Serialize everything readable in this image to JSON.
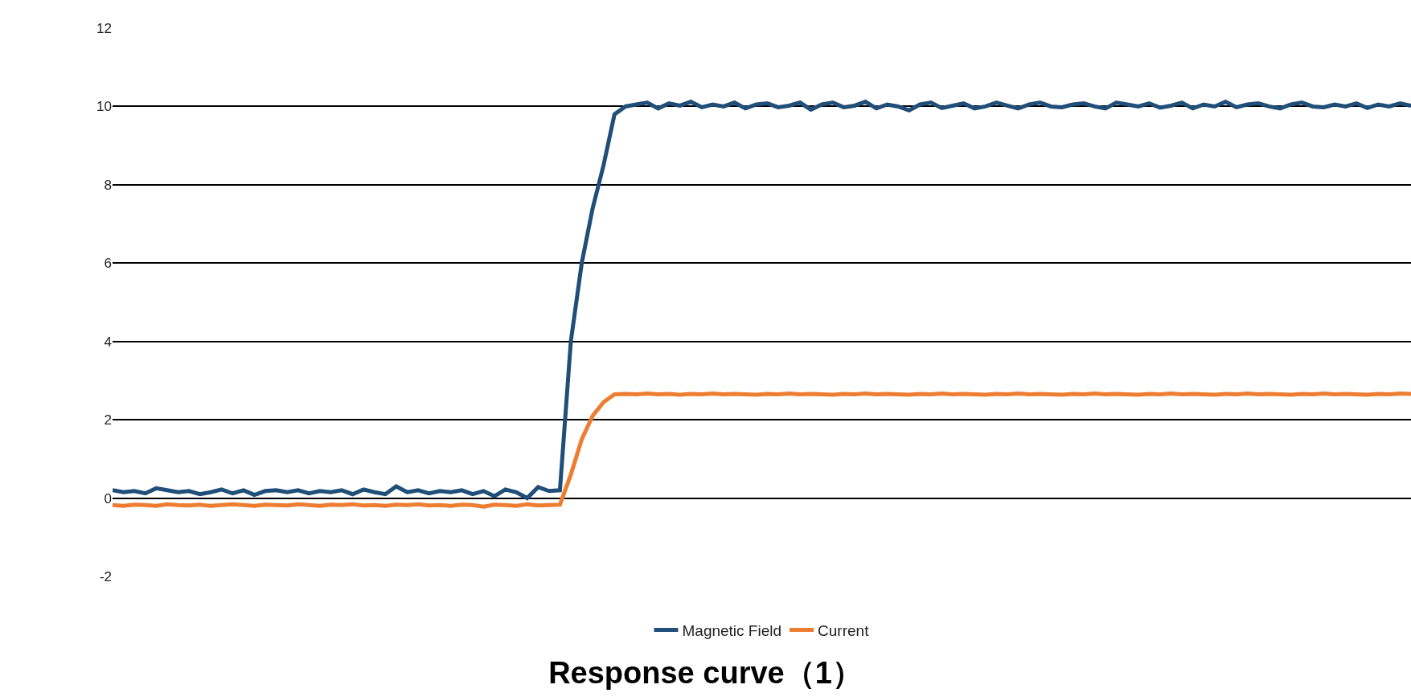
{
  "chart_data": {
    "type": "line",
    "title": "Response curve（1）",
    "categories": [
      null,
      null,
      null,
      null,
      null,
      null,
      null,
      null,
      null,
      null,
      null,
      null,
      null,
      null,
      null,
      null,
      null,
      null,
      null,
      null,
      null,
      null,
      null,
      null,
      null,
      null,
      null,
      null,
      null,
      null,
      null,
      null,
      null,
      null,
      null,
      null,
      null,
      null,
      null,
      null,
      null,
      null,
      null,
      null,
      null,
      null,
      null,
      null,
      null,
      null,
      null,
      null,
      null,
      null,
      null,
      null,
      null,
      null,
      null,
      null,
      null,
      null,
      null,
      null,
      null,
      null,
      null,
      null,
      null,
      null,
      null,
      null,
      null,
      null,
      null,
      null,
      null,
      null,
      null,
      null,
      null,
      null,
      null,
      null,
      null,
      null,
      null,
      null,
      null,
      null,
      null,
      null,
      null,
      null,
      null,
      null,
      null,
      null,
      null,
      null,
      null,
      null,
      null,
      null,
      null,
      null,
      null,
      null,
      null,
      null,
      null,
      null,
      null,
      null,
      null,
      null,
      null,
      null,
      null,
      null
    ],
    "series": [
      {
        "name": "Magnetic Field",
        "color": "#1f4e79",
        "values": [
          0.2,
          0.15,
          0.18,
          0.12,
          0.25,
          0.2,
          0.15,
          0.18,
          0.1,
          0.15,
          0.22,
          0.12,
          0.2,
          0.08,
          0.18,
          0.2,
          0.15,
          0.2,
          0.12,
          0.18,
          0.15,
          0.2,
          0.1,
          0.22,
          0.15,
          0.1,
          0.3,
          0.15,
          0.2,
          0.12,
          0.18,
          0.15,
          0.2,
          0.1,
          0.18,
          0.05,
          0.22,
          0.15,
          0.0,
          0.28,
          0.18,
          0.2,
          4.0,
          6.0,
          7.4,
          8.5,
          9.8,
          10.0,
          10.05,
          10.1,
          9.95,
          10.08,
          10.02,
          10.12,
          9.98,
          10.05,
          10.0,
          10.1,
          9.95,
          10.05,
          10.08,
          9.98,
          10.02,
          10.1,
          9.92,
          10.05,
          10.1,
          9.98,
          10.02,
          10.12,
          9.95,
          10.05,
          10.0,
          9.9,
          10.05,
          10.1,
          9.96,
          10.02,
          10.08,
          9.95,
          10.0,
          10.1,
          10.02,
          9.95,
          10.05,
          10.1,
          10.0,
          9.98,
          10.05,
          10.08,
          10.0,
          9.95,
          10.1,
          10.05,
          10.0,
          10.08,
          9.97,
          10.02,
          10.1,
          9.95,
          10.05,
          10.0,
          10.12,
          9.98,
          10.05,
          10.08,
          10.0,
          9.95,
          10.05,
          10.1,
          10.0,
          9.98,
          10.05,
          10.0,
          10.08,
          9.96,
          10.05,
          10.0,
          10.08,
          10.02
        ]
      },
      {
        "name": "Current",
        "color": "#ed7d31",
        "values": [
          -0.18,
          -0.2,
          -0.17,
          -0.18,
          -0.2,
          -0.16,
          -0.18,
          -0.19,
          -0.17,
          -0.2,
          -0.18,
          -0.16,
          -0.18,
          -0.2,
          -0.17,
          -0.18,
          -0.19,
          -0.16,
          -0.18,
          -0.2,
          -0.17,
          -0.18,
          -0.16,
          -0.19,
          -0.18,
          -0.2,
          -0.17,
          -0.18,
          -0.16,
          -0.19,
          -0.18,
          -0.2,
          -0.17,
          -0.18,
          -0.22,
          -0.17,
          -0.18,
          -0.2,
          -0.16,
          -0.19,
          -0.18,
          -0.17,
          0.6,
          1.5,
          2.1,
          2.45,
          2.65,
          2.66,
          2.65,
          2.67,
          2.65,
          2.66,
          2.64,
          2.66,
          2.65,
          2.67,
          2.65,
          2.66,
          2.65,
          2.64,
          2.66,
          2.65,
          2.67,
          2.65,
          2.66,
          2.65,
          2.64,
          2.66,
          2.65,
          2.67,
          2.65,
          2.66,
          2.65,
          2.64,
          2.66,
          2.65,
          2.67,
          2.65,
          2.66,
          2.65,
          2.64,
          2.66,
          2.65,
          2.67,
          2.65,
          2.66,
          2.65,
          2.64,
          2.66,
          2.65,
          2.67,
          2.65,
          2.66,
          2.65,
          2.64,
          2.66,
          2.65,
          2.67,
          2.65,
          2.66,
          2.65,
          2.64,
          2.66,
          2.65,
          2.67,
          2.65,
          2.66,
          2.65,
          2.64,
          2.66,
          2.65,
          2.67,
          2.65,
          2.66,
          2.65,
          2.64,
          2.66,
          2.65,
          2.67,
          2.66
        ]
      }
    ],
    "ylim": [
      -2,
      12
    ],
    "yticks": [
      -2,
      0,
      2,
      4,
      6,
      8,
      10,
      12
    ],
    "grid": "y",
    "legend": "bottom",
    "marker": "none",
    "line_style": "solid"
  }
}
